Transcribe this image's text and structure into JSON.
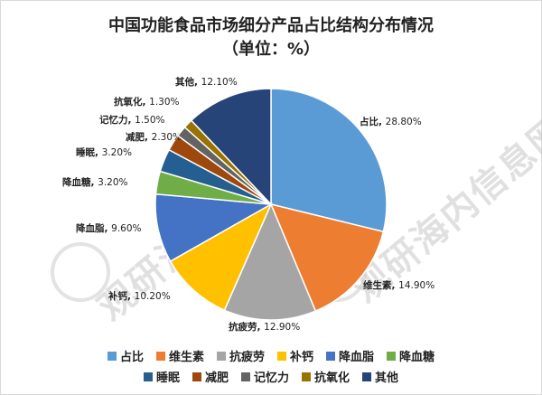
{
  "chart_data": {
    "type": "pie",
    "title": "中国功能食品市场细分产品占比结构分布情况",
    "subtitle": "（单位：%）",
    "series": [
      {
        "name": "占比",
        "value": 28.8,
        "label": "28.80%",
        "color": "#5b9bd5"
      },
      {
        "name": "维生素",
        "value": 14.9,
        "label": "14.90%",
        "color": "#ed7d31"
      },
      {
        "name": "抗疲劳",
        "value": 12.9,
        "label": "12.90%",
        "color": "#a5a5a5"
      },
      {
        "name": "补钙",
        "value": 10.2,
        "label": "10.20%",
        "color": "#ffc000"
      },
      {
        "name": "降血脂",
        "value": 9.6,
        "label": "9.60%",
        "color": "#4472c4"
      },
      {
        "name": "降血糖",
        "value": 3.2,
        "label": "3.20%",
        "color": "#70ad47"
      },
      {
        "name": "睡眠",
        "value": 3.2,
        "label": "3.20%",
        "color": "#255e91"
      },
      {
        "name": "减肥",
        "value": 2.3,
        "label": "2.30%",
        "color": "#9e480e"
      },
      {
        "name": "记忆力",
        "value": 1.5,
        "label": "1.50%",
        "color": "#636363"
      },
      {
        "name": "抗氧化",
        "value": 1.3,
        "label": "1.30%",
        "color": "#997300"
      },
      {
        "name": "其他",
        "value": 12.1,
        "label": "12.10%",
        "color": "#264478"
      }
    ],
    "legend_placement": "bottom"
  },
  "watermark": {
    "left_text": "观研海外信息网",
    "right_text": "观研海内信息网"
  }
}
